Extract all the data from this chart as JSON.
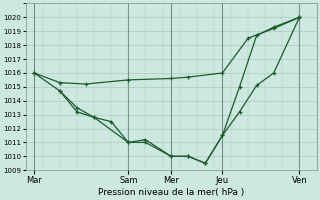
{
  "background_color": "#cce8e0",
  "grid_color": "#aaccbb",
  "line_color": "#1a5c2a",
  "marker_color": "#1a5c2a",
  "xlabel": "Pression niveau de la mer( hPa )",
  "ylim": [
    1009,
    1021
  ],
  "yticks": [
    1009,
    1010,
    1011,
    1012,
    1013,
    1014,
    1015,
    1016,
    1017,
    1018,
    1019,
    1020
  ],
  "day_labels": [
    "Mar",
    "Sam",
    "Mer",
    "Jeu",
    "Ven"
  ],
  "day_positions": [
    0,
    5.5,
    8,
    11,
    15.5
  ],
  "xlim": [
    -0.5,
    16.5
  ],
  "series1": {
    "x": [
      0,
      1.5,
      3,
      5.5,
      8,
      9,
      11,
      12.5,
      14,
      15.5
    ],
    "y": [
      1016.0,
      1015.3,
      1015.2,
      1015.5,
      1015.6,
      1015.7,
      1016.0,
      1018.5,
      1019.2,
      1020.0
    ]
  },
  "series2": {
    "x": [
      0,
      1.5,
      2.5,
      3.5,
      5.5,
      6.5,
      8,
      9,
      10,
      11,
      12,
      13,
      14,
      15.5
    ],
    "y": [
      1016.0,
      1014.7,
      1013.5,
      1012.8,
      1011.0,
      1011.2,
      1010.0,
      1010.0,
      1009.5,
      1011.5,
      1013.2,
      1015.1,
      1016.0,
      1020.0
    ]
  },
  "series3": {
    "x": [
      1.5,
      2.5,
      3.5,
      4.5,
      5.5,
      6.5,
      8,
      9,
      10,
      11,
      12,
      13,
      14,
      15.5
    ],
    "y": [
      1014.7,
      1013.2,
      1012.8,
      1012.5,
      1011.0,
      1011.0,
      1010.0,
      1010.0,
      1009.5,
      1011.5,
      1015.0,
      1018.7,
      1019.3,
      1020.0
    ]
  }
}
